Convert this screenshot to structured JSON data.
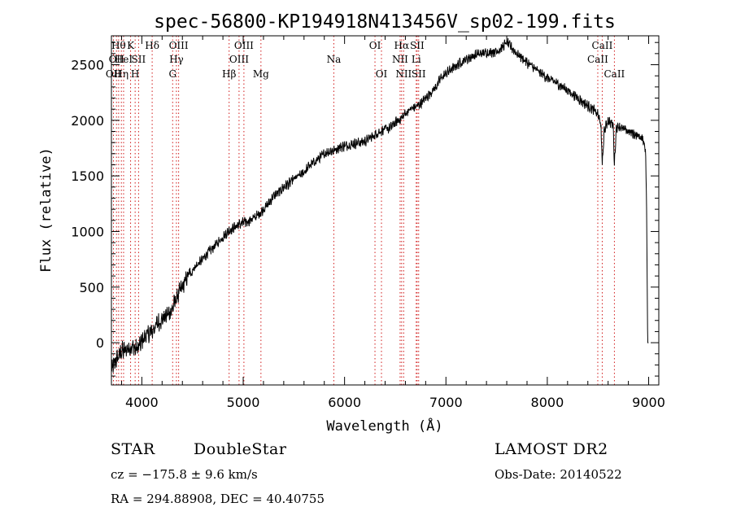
{
  "chart_data": {
    "type": "line",
    "title": "spec-56800-KP194918N413456V_sp02-199.fits",
    "xlabel": "Wavelength (Å)",
    "ylabel": "Flux (relative)",
    "xlim": [
      3700,
      9100
    ],
    "ylim": [
      -380,
      2760
    ],
    "xticks": [
      4000,
      5000,
      6000,
      7000,
      8000,
      9000
    ],
    "yticks": [
      0,
      500,
      1000,
      1500,
      2000,
      2500
    ],
    "grid": false,
    "series": [
      {
        "x": [
          3700,
          3750,
          3800,
          3850,
          3900,
          3950,
          4000,
          4050,
          4100,
          4150,
          4200,
          4250,
          4300,
          4350,
          4400,
          4450,
          4500,
          4550,
          4600,
          4650,
          4700,
          4750,
          4800,
          4850,
          4900,
          4950,
          5000,
          5050,
          5100,
          5150,
          5200,
          5250,
          5300,
          5350,
          5400,
          5450,
          5500,
          5550,
          5600,
          5650,
          5700,
          5750,
          5800,
          5850,
          5900,
          5950,
          6000,
          6050,
          6100,
          6150,
          6200,
          6250,
          6300,
          6350,
          6400,
          6450,
          6500,
          6550,
          6600,
          6650,
          6700,
          6750,
          6800,
          6850,
          6900,
          6950,
          7000,
          7100,
          7200,
          7300,
          7400,
          7500,
          7550,
          7600,
          7650,
          7700,
          7800,
          7900,
          8000,
          8100,
          8200,
          8300,
          8400,
          8450,
          8500,
          8530,
          8542,
          8560,
          8600,
          8650,
          8662,
          8680,
          8700,
          8750,
          8800,
          8850,
          8900,
          8950,
          8970,
          8980,
          8990,
          9000
        ],
        "y": [
          -250,
          -150,
          -80,
          -60,
          -30,
          -60,
          10,
          70,
          100,
          170,
          210,
          250,
          300,
          420,
          500,
          590,
          660,
          700,
          750,
          810,
          850,
          900,
          950,
          1000,
          1030,
          1060,
          1080,
          1090,
          1120,
          1150,
          1200,
          1250,
          1320,
          1350,
          1400,
          1430,
          1470,
          1500,
          1530,
          1590,
          1620,
          1660,
          1700,
          1720,
          1730,
          1760,
          1770,
          1780,
          1790,
          1800,
          1810,
          1840,
          1870,
          1900,
          1920,
          1930,
          1980,
          2010,
          2060,
          2100,
          2120,
          2150,
          2200,
          2250,
          2300,
          2380,
          2420,
          2490,
          2550,
          2590,
          2610,
          2620,
          2650,
          2700,
          2650,
          2600,
          2520,
          2450,
          2380,
          2330,
          2270,
          2200,
          2130,
          2100,
          2050,
          1950,
          1580,
          1900,
          2000,
          1960,
          1600,
          1930,
          1950,
          1920,
          1900,
          1880,
          1860,
          1820,
          1720,
          1200,
          0,
          0
        ]
      }
    ],
    "lines": [
      {
        "wave": 3720,
        "label": "OII",
        "row": 2
      },
      {
        "wave": 3750,
        "label": "OII",
        "row": 1
      },
      {
        "wave": 3771,
        "label": "Hθ",
        "row": 0
      },
      {
        "wave": 3798,
        "label": "Hη",
        "row": 2
      },
      {
        "wave": 3820,
        "label": "HeI",
        "row": 1
      },
      {
        "wave": 3889,
        "label": "K",
        "row": 0
      },
      {
        "wave": 3934,
        "label": "H",
        "row": 2
      },
      {
        "wave": 3968,
        "label": "SII",
        "row": 1
      },
      {
        "wave": 4102,
        "label": "Hδ",
        "row": 0
      },
      {
        "wave": 4304,
        "label": "G",
        "row": 2
      },
      {
        "wave": 4341,
        "label": "Hγ",
        "row": 1
      },
      {
        "wave": 4363,
        "label": "OIII",
        "row": 0
      },
      {
        "wave": 4861,
        "label": "Hβ",
        "row": 2
      },
      {
        "wave": 4959,
        "label": "OIII",
        "row": 1
      },
      {
        "wave": 5007,
        "label": "OIII",
        "row": 0
      },
      {
        "wave": 5175,
        "label": "Mg",
        "row": 2
      },
      {
        "wave": 5894,
        "label": "Na",
        "row": 1
      },
      {
        "wave": 6300,
        "label": "OI",
        "row": 0
      },
      {
        "wave": 6364,
        "label": "OI",
        "row": 2
      },
      {
        "wave": 6548,
        "label": "NII",
        "row": 1
      },
      {
        "wave": 6563,
        "label": "Hα",
        "row": 0
      },
      {
        "wave": 6583,
        "label": "NII",
        "row": 2
      },
      {
        "wave": 6716,
        "label": "SII",
        "row": 0
      },
      {
        "wave": 6707,
        "label": "Li",
        "row": 1
      },
      {
        "wave": 6731,
        "label": "SII",
        "row": 2
      },
      {
        "wave": 8498,
        "label": "CaII",
        "row": 1
      },
      {
        "wave": 8542,
        "label": "CaII",
        "row": 0
      },
      {
        "wave": 8662,
        "label": "CaII",
        "row": 2
      }
    ]
  },
  "info": {
    "class": "STAR",
    "subclass": "DoubleStar",
    "survey": "LAMOST DR2",
    "cz": "cz = −175.8 ± 9.6 km/s",
    "obs_date": "Obs-Date: 20140522",
    "radec": "RA = 294.88908, DEC =  40.40755"
  },
  "colors": {
    "axes": "#000000",
    "spectrum": "#000000",
    "line_marker": "#d11b1b",
    "background": "#ffffff"
  }
}
